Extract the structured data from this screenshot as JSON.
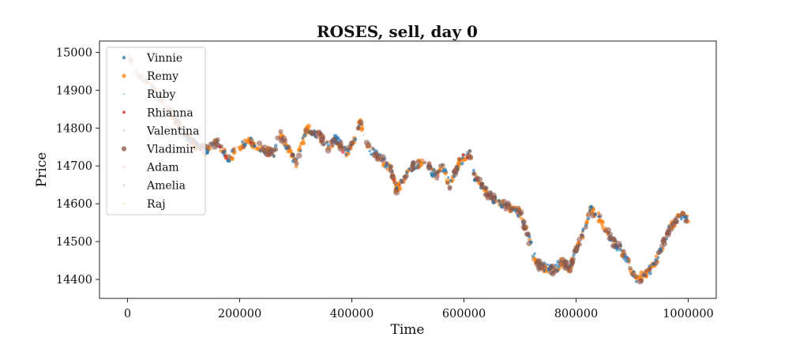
{
  "chart_data": {
    "type": "scatter",
    "title": "ROSES, sell, day 0",
    "xlabel": "Time",
    "ylabel": "Price",
    "xlim": [
      -50000,
      1050000
    ],
    "ylim": [
      14350,
      15030
    ],
    "xticks": [
      0,
      200000,
      400000,
      600000,
      800000,
      1000000
    ],
    "yticks": [
      14400,
      14500,
      14600,
      14700,
      14800,
      14900,
      15000
    ],
    "grid": false,
    "legend_position": "top-left",
    "price_path": [
      [
        0,
        15000
      ],
      [
        20000,
        14935
      ],
      [
        40000,
        14910
      ],
      [
        60000,
        14880
      ],
      [
        80000,
        14835
      ],
      [
        100000,
        14790
      ],
      [
        120000,
        14755
      ],
      [
        140000,
        14740
      ],
      [
        160000,
        14760
      ],
      [
        180000,
        14720
      ],
      [
        200000,
        14750
      ],
      [
        220000,
        14765
      ],
      [
        240000,
        14745
      ],
      [
        260000,
        14730
      ],
      [
        270000,
        14790
      ],
      [
        285000,
        14745
      ],
      [
        300000,
        14705
      ],
      [
        320000,
        14800
      ],
      [
        340000,
        14785
      ],
      [
        360000,
        14745
      ],
      [
        370000,
        14775
      ],
      [
        390000,
        14735
      ],
      [
        400000,
        14750
      ],
      [
        415000,
        14815
      ],
      [
        430000,
        14745
      ],
      [
        450000,
        14720
      ],
      [
        470000,
        14695
      ],
      [
        480000,
        14635
      ],
      [
        495000,
        14675
      ],
      [
        510000,
        14700
      ],
      [
        530000,
        14715
      ],
      [
        550000,
        14670
      ],
      [
        560000,
        14700
      ],
      [
        575000,
        14650
      ],
      [
        590000,
        14705
      ],
      [
        610000,
        14740
      ],
      [
        620000,
        14670
      ],
      [
        640000,
        14630
      ],
      [
        660000,
        14605
      ],
      [
        680000,
        14590
      ],
      [
        700000,
        14575
      ],
      [
        715000,
        14510
      ],
      [
        730000,
        14440
      ],
      [
        750000,
        14430
      ],
      [
        760000,
        14425
      ],
      [
        775000,
        14445
      ],
      [
        790000,
        14430
      ],
      [
        800000,
        14480
      ],
      [
        810000,
        14510
      ],
      [
        825000,
        14585
      ],
      [
        840000,
        14565
      ],
      [
        855000,
        14530
      ],
      [
        865000,
        14500
      ],
      [
        880000,
        14480
      ],
      [
        895000,
        14440
      ],
      [
        910000,
        14390
      ],
      [
        920000,
        14415
      ],
      [
        935000,
        14430
      ],
      [
        950000,
        14470
      ],
      [
        965000,
        14530
      ],
      [
        985000,
        14570
      ],
      [
        1000000,
        14560
      ]
    ],
    "series": [
      {
        "name": "Vinnie",
        "color": "#1f77b4",
        "size": 2.2,
        "density": 0.55,
        "alpha": 0.65
      },
      {
        "name": "Remy",
        "color": "#ff7f0e",
        "size": 2.6,
        "density": 0.9,
        "alpha": 0.65
      },
      {
        "name": "Ruby",
        "color": "#2ca02c",
        "size": 0.8,
        "density": 0.03,
        "alpha": 0.55
      },
      {
        "name": "Rhianna",
        "color": "#d62728",
        "size": 2.0,
        "density": 0.02,
        "alpha": 0.6
      },
      {
        "name": "Valentina",
        "color": "#9467bd",
        "size": 0.8,
        "density": 0.03,
        "alpha": 0.55
      },
      {
        "name": "Vladimir",
        "color": "#8c564b",
        "size": 3.2,
        "density": 0.55,
        "alpha": 0.6
      },
      {
        "name": "Adam",
        "color": "#e377c2",
        "size": 0.8,
        "density": 0.03,
        "alpha": 0.55
      },
      {
        "name": "Amelia",
        "color": "#7f7f7f",
        "size": 0.8,
        "density": 0.03,
        "alpha": 0.55
      },
      {
        "name": "Raj",
        "color": "#bcbd22",
        "size": 0.8,
        "density": 0.03,
        "alpha": 0.55
      }
    ]
  }
}
